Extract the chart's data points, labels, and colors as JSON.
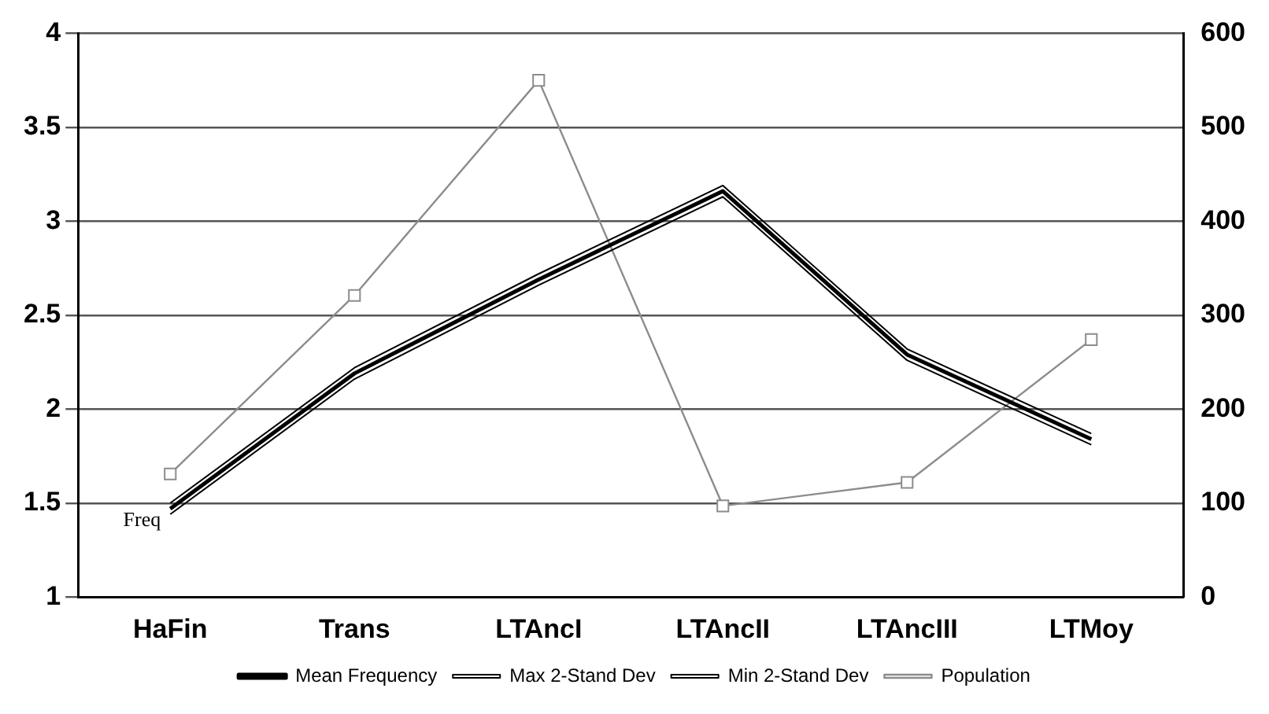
{
  "chart_data": {
    "type": "line",
    "categories": [
      "HaFin",
      "Trans",
      "LTAncI",
      "LTAncII",
      "LTAncIII",
      "LTMoy"
    ],
    "series": [
      {
        "name": "Mean Frequency",
        "color": "#000000",
        "marker": "none",
        "values": [
          1.47,
          2.19,
          2.69,
          3.16,
          2.29,
          1.84
        ]
      },
      {
        "name": "Max 2-Stand Dev",
        "color": "#000000",
        "marker": "none",
        "values": [
          1.5,
          2.22,
          2.72,
          3.19,
          2.32,
          1.87
        ]
      },
      {
        "name": "Min 2-Stand Dev",
        "color": "#000000",
        "marker": "none",
        "values": [
          1.44,
          2.16,
          2.66,
          3.13,
          2.26,
          1.81
        ]
      },
      {
        "name": "Population",
        "color": "#8c8c8c",
        "marker": "square",
        "axis": "y2",
        "values": [
          131,
          321,
          550,
          97,
          122,
          274
        ]
      }
    ],
    "ylim": [
      1,
      4
    ],
    "yticks": [
      1,
      1.5,
      2,
      2.5,
      3,
      3.5,
      4
    ],
    "y2lim": [
      0,
      600
    ],
    "y2ticks": [
      0,
      100,
      200,
      300,
      400,
      500,
      600
    ],
    "grid": "y",
    "legend": "bottom",
    "annotations": [
      {
        "text": "Freq",
        "x": "HaFin",
        "y": 1.47
      }
    ]
  }
}
